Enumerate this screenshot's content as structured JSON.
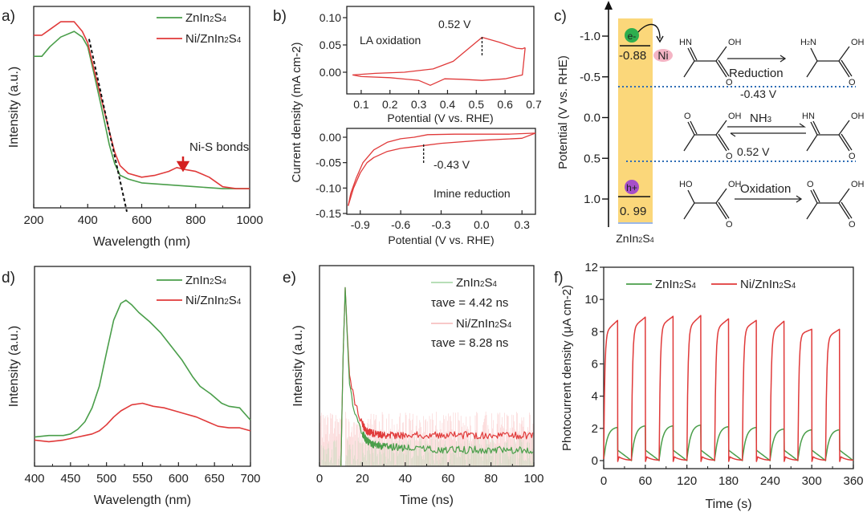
{
  "colors": {
    "green": "#4a9e4a",
    "red": "#e03a3a",
    "band": "#fbd77a",
    "dotted": "#2f6db5",
    "label_red": "#e02020"
  },
  "chart_data": [
    {
      "panel": "a)",
      "type": "line",
      "xlabel": "Wavelength (nm)",
      "ylabel": "Intensity (a.u.)",
      "xlim": [
        200,
        1000
      ],
      "xticks": [
        "200",
        "400",
        "600",
        "800",
        "1000"
      ],
      "legend": {
        "placement": "top-right",
        "entries": [
          "ZnIn2S4",
          "Ni/ZnIn2S4"
        ]
      },
      "annotation": "Ni-S bonds",
      "series": [
        {
          "name": "ZnIn2S4",
          "color": "green",
          "x": [
            200,
            230,
            260,
            300,
            350,
            380,
            400,
            420,
            450,
            480,
            500,
            520,
            550,
            600,
            700,
            800,
            900,
            1000
          ],
          "y": [
            0.79,
            0.79,
            0.84,
            0.89,
            0.92,
            0.89,
            0.84,
            0.72,
            0.53,
            0.33,
            0.23,
            0.17,
            0.15,
            0.13,
            0.12,
            0.11,
            0.1,
            0.1
          ]
        },
        {
          "name": "Ni/ZnIn2S4",
          "color": "red",
          "x": [
            200,
            230,
            260,
            300,
            350,
            380,
            400,
            420,
            450,
            480,
            500,
            520,
            550,
            600,
            650,
            700,
            730,
            760,
            800,
            850,
            900,
            950,
            1000
          ],
          "y": [
            0.9,
            0.9,
            0.93,
            0.97,
            0.97,
            0.92,
            0.86,
            0.74,
            0.57,
            0.4,
            0.29,
            0.22,
            0.18,
            0.16,
            0.17,
            0.19,
            0.21,
            0.2,
            0.19,
            0.16,
            0.11,
            0.1,
            0.1
          ]
        }
      ],
      "tangent": {
        "x": [
          405,
          545
        ],
        "y": [
          0.88,
          -0.02
        ]
      }
    },
    {
      "panel": "b)",
      "type": "line",
      "subplots": [
        {
          "label": "LA oxidation",
          "xlabel": "Potential (V vs. RHE)",
          "xlim": [
            0.05,
            0.7
          ],
          "ylim": [
            -0.04,
            0.12
          ],
          "xticks": [
            "0.1",
            "0.2",
            "0.3",
            "0.4",
            "0.5",
            "0.6",
            "0.7"
          ],
          "yticks": [
            "0.00",
            "0.05",
            "0.10"
          ],
          "marker": "0.52 V",
          "forward": {
            "x": [
              0.07,
              0.15,
              0.25,
              0.35,
              0.42,
              0.47,
              0.52,
              0.58,
              0.64,
              0.66,
              0.67
            ],
            "y": [
              -0.005,
              -0.002,
              0.0,
              0.006,
              0.02,
              0.042,
              0.064,
              0.055,
              0.044,
              0.043,
              0.045
            ]
          },
          "reverse": {
            "x": [
              0.67,
              0.66,
              0.6,
              0.52,
              0.45,
              0.39,
              0.34,
              0.3,
              0.2,
              0.1,
              0.07
            ],
            "y": [
              0.045,
              -0.005,
              -0.012,
              -0.015,
              -0.013,
              -0.012,
              -0.024,
              -0.015,
              -0.01,
              -0.008,
              -0.005
            ]
          }
        },
        {
          "label": "Imine reduction",
          "ylabel": "Current density (mA cm-2)",
          "xlabel": "Potential (V vs. RHE)",
          "xlim": [
            -1.0,
            0.4
          ],
          "ylim": [
            -0.15,
            0.02
          ],
          "xticks": [
            "-0.9",
            "-0.6",
            "-0.3",
            "0.0",
            "0.3"
          ],
          "yticks": [
            "0.00",
            "-0.05",
            "-0.10",
            "-0.15"
          ],
          "marker": "-0.43 V",
          "forward": {
            "x": [
              0.4,
              0.2,
              0.0,
              -0.2,
              -0.4,
              -0.5,
              -0.6,
              -0.7,
              -0.8,
              -0.88,
              -0.93,
              -0.97,
              -0.99
            ],
            "y": [
              0.008,
              0.006,
              0.006,
              0.006,
              0.005,
              0.0,
              -0.003,
              -0.01,
              -0.025,
              -0.05,
              -0.08,
              -0.11,
              -0.135
            ]
          },
          "reverse": {
            "x": [
              -0.99,
              -0.95,
              -0.9,
              -0.85,
              -0.8,
              -0.7,
              -0.6,
              -0.45,
              -0.3,
              0.0,
              0.3,
              0.4
            ],
            "y": [
              -0.135,
              -0.1,
              -0.07,
              -0.05,
              -0.04,
              -0.028,
              -0.022,
              -0.017,
              -0.012,
              -0.006,
              -0.002,
              0.008
            ]
          }
        }
      ]
    },
    {
      "panel": "c)",
      "type": "diagram",
      "ylabel": "Potential (V vs. RHE)",
      "yticks": [
        "-1.0",
        "-0.5",
        "0.0",
        "0.5",
        "1.0"
      ],
      "material": "ZnIn2S4",
      "cb_value": "-0.88",
      "vb_value": "0. 99",
      "electron": "e-",
      "hole": "h+",
      "cocatalyst": "Ni",
      "reactions": [
        "Reduction",
        "NH3",
        "Oxidation"
      ],
      "levels": [
        "-0.43 V",
        "0.52 V"
      ],
      "molecule_labels": {
        "hn": "HN",
        "oh": "OH",
        "ho": "HO",
        "o": "O",
        "h2n": "H2N"
      }
    },
    {
      "panel": "d)",
      "type": "line",
      "xlabel": "Wavelength (nm)",
      "ylabel": "Intensity (a.u.)",
      "xlim": [
        400,
        700
      ],
      "xticks": [
        "400",
        "450",
        "500",
        "550",
        "600",
        "650",
        "700"
      ],
      "legend": {
        "placement": "top-right",
        "entries": [
          "ZnIn2S4",
          "Ni/ZnIn2S4"
        ]
      },
      "series": [
        {
          "name": "ZnIn2S4",
          "color": "green",
          "x": [
            400,
            420,
            440,
            450,
            460,
            470,
            480,
            490,
            500,
            510,
            520,
            527,
            535,
            545,
            560,
            575,
            590,
            605,
            620,
            630,
            645,
            660,
            670,
            685,
            700
          ],
          "y": [
            0.09,
            0.1,
            0.1,
            0.11,
            0.14,
            0.19,
            0.28,
            0.42,
            0.64,
            0.85,
            0.96,
            0.98,
            0.95,
            0.9,
            0.84,
            0.77,
            0.68,
            0.59,
            0.48,
            0.42,
            0.37,
            0.31,
            0.29,
            0.28,
            0.2
          ]
        },
        {
          "name": "Ni/ZnIn2S4",
          "color": "red",
          "x": [
            400,
            420,
            440,
            450,
            460,
            470,
            480,
            490,
            500,
            510,
            520,
            535,
            550,
            565,
            580,
            595,
            610,
            625,
            640,
            655,
            670,
            685,
            700
          ],
          "y": [
            0.07,
            0.06,
            0.07,
            0.08,
            0.09,
            0.1,
            0.11,
            0.13,
            0.17,
            0.22,
            0.26,
            0.3,
            0.31,
            0.29,
            0.28,
            0.26,
            0.24,
            0.22,
            0.19,
            0.16,
            0.15,
            0.15,
            0.13
          ]
        }
      ]
    },
    {
      "panel": "e)",
      "type": "line",
      "xlabel": "Time (ns)",
      "ylabel": "Intensity (a.u.)",
      "xlim": [
        0,
        100
      ],
      "xticks": [
        "0",
        "20",
        "40",
        "60",
        "80",
        "100"
      ],
      "legend": {
        "placement": "top-right",
        "entries": [
          "ZnIn2S4",
          "τave = 4.42 ns",
          "Ni/ZnIn2S4",
          "τave = 8.28 ns"
        ]
      },
      "series": [
        {
          "name": "ZnIn2S4",
          "color": "green",
          "tau_ave_ns": 4.42,
          "x": [
            10,
            11,
            12,
            13,
            14,
            16,
            18,
            20,
            22,
            25,
            30,
            40,
            60,
            80,
            100
          ],
          "y": [
            0.0,
            0.6,
            0.98,
            0.7,
            0.45,
            0.32,
            0.24,
            0.18,
            0.14,
            0.12,
            0.11,
            0.1,
            0.09,
            0.09,
            0.09
          ]
        },
        {
          "name": "Ni/ZnIn2S4",
          "color": "red",
          "tau_ave_ns": 8.28,
          "x": [
            10,
            11,
            12,
            13,
            14,
            16,
            18,
            20,
            22,
            25,
            30,
            40,
            60,
            80,
            100
          ],
          "y": [
            0.0,
            0.6,
            0.98,
            0.72,
            0.5,
            0.37,
            0.29,
            0.23,
            0.19,
            0.18,
            0.17,
            0.17,
            0.17,
            0.17,
            0.17
          ]
        }
      ]
    },
    {
      "panel": "f)",
      "type": "line",
      "xlabel": "Time (s)",
      "ylabel": "Photocurrent density (μA cm-2)",
      "xlim": [
        0,
        360
      ],
      "ylim": [
        -0.5,
        12
      ],
      "xticks": [
        "0",
        "60",
        "120",
        "180",
        "240",
        "300",
        "360"
      ],
      "yticks": [
        "0",
        "2",
        "4",
        "6",
        "8",
        "10",
        "12"
      ],
      "legend": {
        "placement": "top",
        "entries": [
          "ZnIn2S4",
          "Ni/ZnIn2S4"
        ]
      },
      "cycle_period_s": 40,
      "on_duration_s": 20,
      "series": [
        {
          "name": "ZnIn2S4",
          "color": "green",
          "on_peak_values": [
            2.1,
            2.2,
            2.2,
            2.25,
            2.15,
            2.1,
            2.0,
            1.95,
            1.95
          ],
          "on_start_values": [
            1.0,
            1.2,
            1.2,
            1.3,
            1.3,
            1.3,
            1.3,
            1.3,
            1.3
          ]
        },
        {
          "name": "Ni/ZnIn2S4",
          "color": "red",
          "on_peak_values": [
            8.7,
            8.9,
            8.95,
            9.0,
            8.8,
            8.7,
            8.65,
            8.15,
            8.15
          ],
          "on_start_values": [
            7.9,
            8.2,
            8.3,
            8.2,
            8.1,
            8.1,
            7.9,
            7.8,
            7.6
          ]
        }
      ]
    }
  ]
}
